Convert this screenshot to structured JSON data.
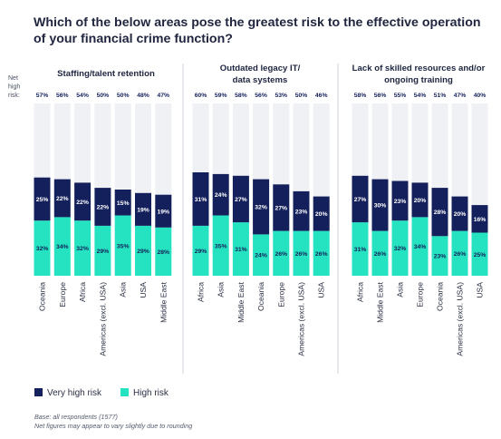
{
  "title": "Which of the below areas pose the greatest risk to the effective operation of your financial crime function?",
  "net_label": "Net high risk:",
  "colors": {
    "very_high": "#14205b",
    "high": "#25e3c0",
    "background": "#eff1f5",
    "divider": "#c4c7cf",
    "text": "#1d2440"
  },
  "legend": [
    {
      "label": "Very high risk",
      "color": "#14205b"
    },
    {
      "label": "High risk",
      "color": "#25e3c0"
    }
  ],
  "notes": {
    "base": "Base: all respondents (1577)",
    "rounding": "Net figures may appear to vary slightly due to rounding"
  },
  "chart_data": [
    {
      "type": "bar",
      "stacked": true,
      "title": "Staffing/talent retention",
      "categories": [
        "Oceania",
        "Europe",
        "Africa",
        "Americas (excl. USA)",
        "Asia",
        "USA",
        "Middle East"
      ],
      "net": [
        "57%",
        "56%",
        "54%",
        "50%",
        "50%",
        "48%",
        "47%"
      ],
      "series": [
        {
          "name": "Very high risk",
          "values": [
            25,
            22,
            22,
            22,
            15,
            19,
            19
          ]
        },
        {
          "name": "High risk",
          "values": [
            32,
            34,
            32,
            29,
            35,
            29,
            28
          ]
        }
      ],
      "ylim": [
        0,
        100
      ]
    },
    {
      "type": "bar",
      "stacked": true,
      "title": "Outdated legacy IT/ data systems",
      "categories": [
        "Africa",
        "Asia",
        "Middle East",
        "Oceania",
        "Europe",
        "Americas (excl. USA)",
        "USA"
      ],
      "net": [
        "60%",
        "59%",
        "58%",
        "56%",
        "53%",
        "50%",
        "46%"
      ],
      "series": [
        {
          "name": "Very high risk",
          "values": [
            31,
            24,
            27,
            32,
            27,
            23,
            20
          ]
        },
        {
          "name": "High risk",
          "values": [
            29,
            35,
            31,
            24,
            26,
            26,
            26
          ]
        }
      ],
      "ylim": [
        0,
        100
      ]
    },
    {
      "type": "bar",
      "stacked": true,
      "title": "Lack of skilled resources and/or ongoing training",
      "categories": [
        "Africa",
        "Middle East",
        "Asia",
        "Europe",
        "Oceania",
        "Americas (excl. USA)",
        "USA"
      ],
      "net": [
        "58%",
        "56%",
        "55%",
        "54%",
        "51%",
        "47%",
        "40%"
      ],
      "series": [
        {
          "name": "Very high risk",
          "values": [
            27,
            30,
            23,
            20,
            28,
            20,
            16
          ]
        },
        {
          "name": "High risk",
          "values": [
            31,
            26,
            32,
            34,
            23,
            26,
            25
          ]
        }
      ],
      "ylim": [
        0,
        100
      ]
    }
  ]
}
